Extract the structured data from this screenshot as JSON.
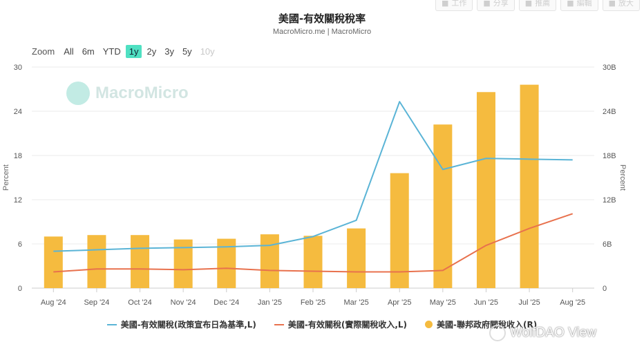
{
  "toolbar": {
    "buttons": [
      {
        "label": "工作",
        "icon": "bookmark-icon"
      },
      {
        "label": "分享",
        "icon": "share-icon"
      },
      {
        "label": "推薦",
        "icon": "user-icon"
      },
      {
        "label": "編輯",
        "icon": "pencil-icon"
      },
      {
        "label": "放大",
        "icon": "expand-icon"
      }
    ]
  },
  "header": {
    "title": "美國-有效關稅稅率",
    "subtitle": "MacroMicro.me | MacroMicro"
  },
  "zoom": {
    "label": "Zoom",
    "options": [
      {
        "label": "All",
        "state": "normal"
      },
      {
        "label": "6m",
        "state": "normal"
      },
      {
        "label": "YTD",
        "state": "normal"
      },
      {
        "label": "1y",
        "state": "active"
      },
      {
        "label": "2y",
        "state": "normal"
      },
      {
        "label": "3y",
        "state": "normal"
      },
      {
        "label": "5y",
        "state": "normal"
      },
      {
        "label": "10y",
        "state": "disabled"
      }
    ]
  },
  "watermark": {
    "text": "MacroMicro"
  },
  "credit": {
    "text": "WolfDAO View"
  },
  "chart_data": {
    "type": "bar+line",
    "title": "美國-有效關稅稅率",
    "subtitle": "MacroMicro.me | MacroMicro",
    "categories": [
      "Aug '24",
      "Sep '24",
      "Oct '24",
      "Nov '24",
      "Dec '24",
      "Jan '25",
      "Feb '25",
      "Mar '25",
      "Apr '25",
      "May '25",
      "Jun '25",
      "Jul '25",
      "Aug '25"
    ],
    "y_left": {
      "label": "Percent",
      "min": 0,
      "max": 30,
      "ticks": [
        "0",
        "6",
        "12",
        "18",
        "24",
        "30"
      ]
    },
    "y_right": {
      "label": "Percent",
      "min": 0,
      "max": 30,
      "ticks": [
        "0",
        "6B",
        "12B",
        "18B",
        "24B",
        "30B"
      ]
    },
    "series": [
      {
        "name": "美國-有效關稅(政策宣布日為基準,L)",
        "type": "line",
        "axis": "left",
        "color": "#5ab4d6",
        "values": [
          5.0,
          5.2,
          5.4,
          5.5,
          5.6,
          5.8,
          7.0,
          9.2,
          25.3,
          16.1,
          17.6,
          17.5,
          17.4
        ]
      },
      {
        "name": "美國-有效關稅(實際關稅收入,L)",
        "type": "line",
        "axis": "left",
        "color": "#e8714d",
        "values": [
          2.2,
          2.6,
          2.6,
          2.5,
          2.7,
          2.4,
          2.3,
          2.2,
          2.2,
          2.4,
          5.8,
          8.1,
          10.1
        ]
      },
      {
        "name": "美國-聯邦政府關稅收入(R)",
        "type": "bar",
        "axis": "right",
        "color": "#f5bb3f",
        "values": [
          7.0,
          7.2,
          7.2,
          6.6,
          6.7,
          7.3,
          7.1,
          8.1,
          15.6,
          22.2,
          26.6,
          27.6,
          null
        ]
      }
    ],
    "grid": true,
    "legend_position": "bottom"
  }
}
